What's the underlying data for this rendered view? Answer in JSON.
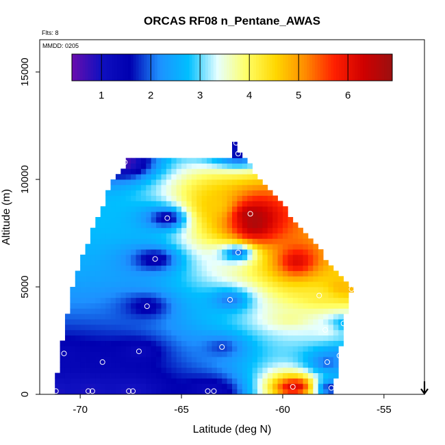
{
  "chart_data": {
    "type": "heatmap",
    "title": "ORCAS RF08 n_Pentane_AWAS",
    "flights_note": "Flts: 8",
    "date_note": "MMDD: 0205",
    "xlabel": "Latitude (deg N)",
    "ylabel": "Altitude (m)",
    "xlim": [
      -72,
      -53
    ],
    "ylim": [
      0,
      16500
    ],
    "xticks": [
      -70,
      -65,
      -60,
      -55
    ],
    "yticks": [
      0,
      5000,
      10000,
      15000
    ],
    "x_tick_labels": [
      "-70",
      "-65",
      "-60",
      "-55"
    ],
    "y_tick_labels": [
      "0",
      "5000",
      "10000",
      "15000"
    ],
    "colorbar": {
      "range": [
        0.4,
        6.9
      ],
      "ticks": [
        1,
        2,
        3,
        4,
        5,
        6
      ],
      "tick_labels": [
        "1",
        "2",
        "3",
        "4",
        "5",
        "6"
      ],
      "colors": [
        "#6a0dad",
        "#1010c0",
        "#0000b0",
        "#1e90ff",
        "#00bfff",
        "#e6ffff",
        "#ffff66",
        "#ffd700",
        "#ff8c00",
        "#ff2000",
        "#d00000",
        "#9b1010"
      ],
      "placement": "top"
    },
    "grid": false,
    "samples": [
      {
        "lat": -71.2,
        "alt": 150,
        "value": 0.9
      },
      {
        "lat": -70.8,
        "alt": 1900,
        "value": 1.3
      },
      {
        "lat": -69.6,
        "alt": 150,
        "value": 0.9
      },
      {
        "lat": -69.4,
        "alt": 150,
        "value": 0.9
      },
      {
        "lat": -68.9,
        "alt": 1500,
        "value": 1.4
      },
      {
        "lat": -67.8,
        "alt": 10800,
        "value": 0.6
      },
      {
        "lat": -67.6,
        "alt": 150,
        "value": 0.9
      },
      {
        "lat": -67.4,
        "alt": 150,
        "value": 0.9
      },
      {
        "lat": -67.1,
        "alt": 2000,
        "value": 1.2
      },
      {
        "lat": -66.7,
        "alt": 4100,
        "value": 1.4
      },
      {
        "lat": -66.3,
        "alt": 6300,
        "value": 1.3
      },
      {
        "lat": -65.7,
        "alt": 8200,
        "value": 1.3
      },
      {
        "lat": -63.7,
        "alt": 150,
        "value": 1.2
      },
      {
        "lat": -63.4,
        "alt": 150,
        "value": 1.2
      },
      {
        "lat": -63.0,
        "alt": 2200,
        "value": 1.8
      },
      {
        "lat": -62.6,
        "alt": 4400,
        "value": 2.0
      },
      {
        "lat": -62.3,
        "alt": 11700,
        "value": 1.3
      },
      {
        "lat": -62.2,
        "alt": 11200,
        "value": 1.5
      },
      {
        "lat": -62.2,
        "alt": 6600,
        "value": 1.8
      },
      {
        "lat": -61.6,
        "alt": 8400,
        "value": 6.8
      },
      {
        "lat": -59.5,
        "alt": 350,
        "value": 6.3
      },
      {
        "lat": -58.2,
        "alt": 4600,
        "value": 4.2
      },
      {
        "lat": -57.9,
        "alt": 3000,
        "value": 3.4
      },
      {
        "lat": -57.6,
        "alt": 300,
        "value": 1.6
      },
      {
        "lat": -57.8,
        "alt": 1500,
        "value": 1.9
      },
      {
        "lat": -57.2,
        "alt": 1800,
        "value": 2.2
      },
      {
        "lat": -57.0,
        "alt": 3300,
        "value": 2.6
      },
      {
        "lat": -56.6,
        "alt": 4900,
        "value": 4.8
      }
    ],
    "field_features": [
      {
        "lat": -61.4,
        "alt": 8000,
        "value": 6.8,
        "spread_lat": 1.3,
        "spread_alt": 1100
      },
      {
        "lat": -59.3,
        "alt": 6200,
        "value": 6.2,
        "spread_lat": 1.0,
        "spread_alt": 700
      },
      {
        "lat": -63.3,
        "alt": 8800,
        "value": 4.6,
        "spread_lat": 1.3,
        "spread_alt": 1000
      },
      {
        "lat": -57.2,
        "alt": 5000,
        "value": 4.8,
        "spread_lat": 0.8,
        "spread_alt": 500
      },
      {
        "lat": -59.6,
        "alt": 3500,
        "value": 3.8,
        "spread_lat": 1.0,
        "spread_alt": 350
      },
      {
        "lat": -59.2,
        "alt": 400,
        "value": 6.2,
        "spread_lat": 0.5,
        "spread_alt": 300
      }
    ],
    "arrow_lat": -53
  }
}
